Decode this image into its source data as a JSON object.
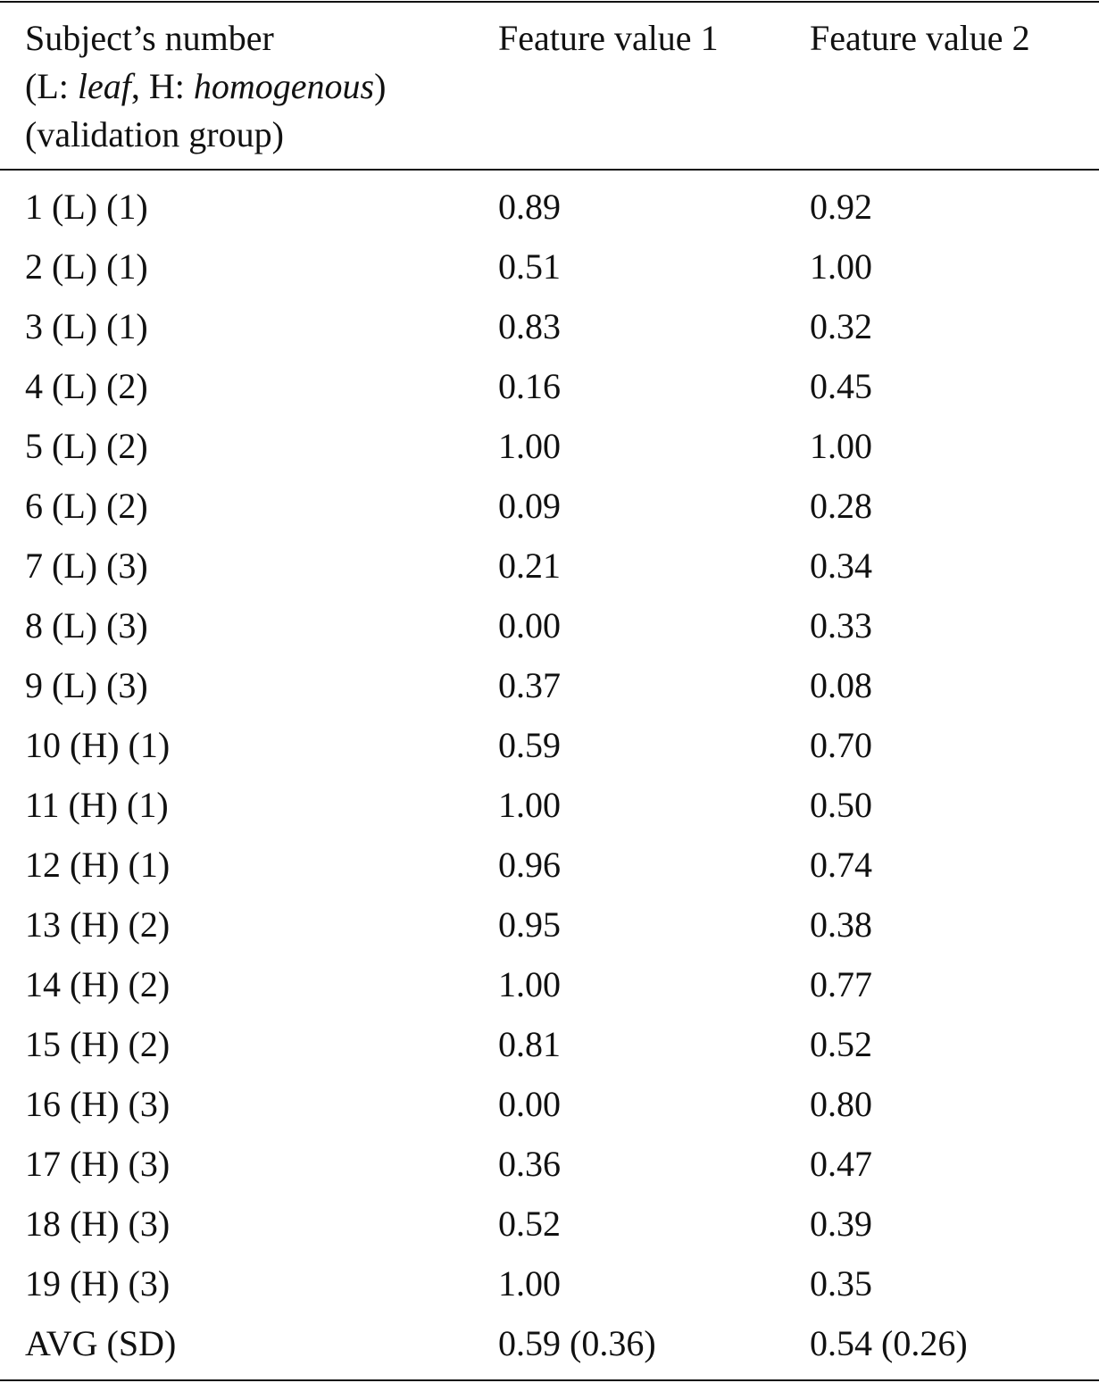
{
  "table": {
    "header": {
      "col0": {
        "line1": "Subject’s number",
        "line2": [
          "(L: ",
          "leaf",
          ", H: ",
          "homogenous",
          ")"
        ],
        "line3": "(validation group)"
      },
      "col1": "Feature value 1",
      "col2": "Feature value 2"
    },
    "rows": [
      [
        "1 (L) (1)",
        "0.89",
        "0.92"
      ],
      [
        "2 (L) (1)",
        "0.51",
        "1.00"
      ],
      [
        "3 (L) (1)",
        "0.83",
        "0.32"
      ],
      [
        "4 (L) (2)",
        "0.16",
        "0.45"
      ],
      [
        "5 (L) (2)",
        "1.00",
        "1.00"
      ],
      [
        "6 (L) (2)",
        "0.09",
        "0.28"
      ],
      [
        "7 (L) (3)",
        "0.21",
        "0.34"
      ],
      [
        "8 (L) (3)",
        "0.00",
        "0.33"
      ],
      [
        "9 (L) (3)",
        "0.37",
        "0.08"
      ],
      [
        "10 (H) (1)",
        "0.59",
        "0.70"
      ],
      [
        "11 (H) (1)",
        "1.00",
        "0.50"
      ],
      [
        "12 (H) (1)",
        "0.96",
        "0.74"
      ],
      [
        "13 (H) (2)",
        "0.95",
        "0.38"
      ],
      [
        "14 (H) (2)",
        "1.00",
        "0.77"
      ],
      [
        "15 (H) (2)",
        "0.81",
        "0.52"
      ],
      [
        "16 (H) (3)",
        "0.00",
        "0.80"
      ],
      [
        "17 (H) (3)",
        "0.36",
        "0.47"
      ],
      [
        "18 (H) (3)",
        "0.52",
        "0.39"
      ],
      [
        "19 (H) (3)",
        "1.00",
        "0.35"
      ],
      [
        "AVG (SD)",
        "0.59 (0.36)",
        "0.54 (0.26)"
      ]
    ]
  }
}
